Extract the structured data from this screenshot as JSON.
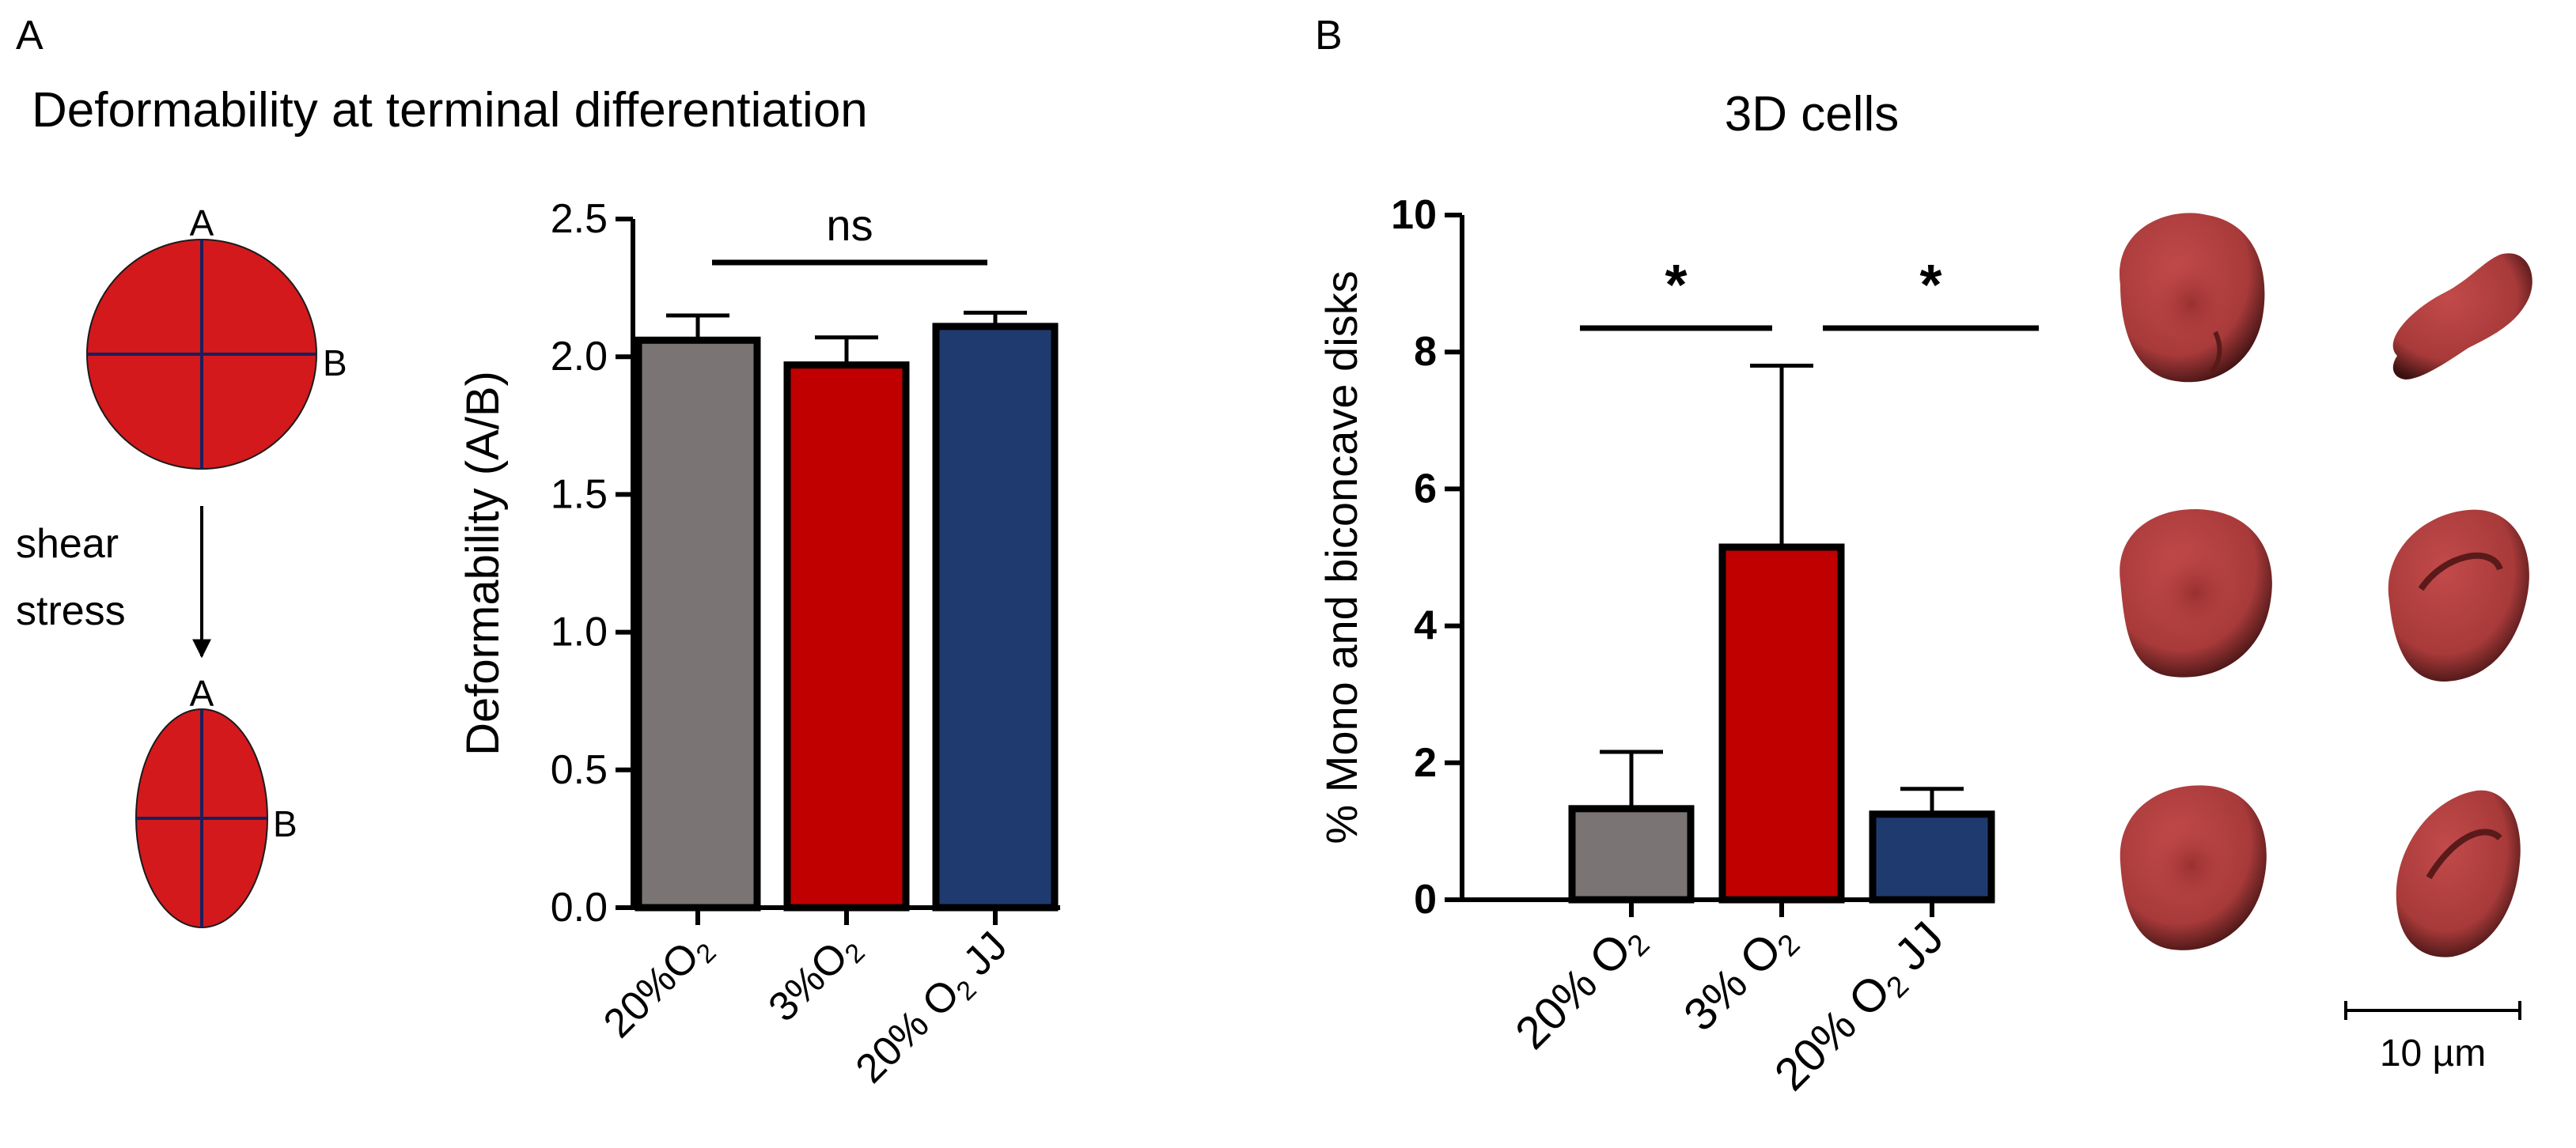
{
  "panel_a": {
    "letter": "A",
    "title": "Deformability at terminal differentiation",
    "schematic": {
      "top_label_a": "A",
      "top_label_b": "B",
      "arrow_line1": "shear",
      "arrow_line2": "stress",
      "bottom_label_a": "A",
      "bottom_label_b": "B"
    }
  },
  "panel_b": {
    "letter": "B",
    "title": "3D cells",
    "scale_bar_label": "10 µm"
  },
  "chart_data": [
    {
      "type": "bar",
      "title": "",
      "xlabel": "",
      "ylabel": "Deformability (A/B)",
      "ylim": [
        0,
        2.5
      ],
      "yticks": [
        0.0,
        0.5,
        1.0,
        1.5,
        2.0,
        2.5
      ],
      "ytick_labels": [
        "0.0",
        "0.5",
        "1.0",
        "1.5",
        "2.0",
        "2.5"
      ],
      "categories": [
        {
          "pre": "20%O",
          "sub": "2",
          "post": ""
        },
        {
          "pre": "3%O",
          "sub": "2",
          "post": ""
        },
        {
          "pre": "20% O",
          "sub": "2",
          "post": " JJ"
        }
      ],
      "values": [
        2.06,
        1.97,
        2.11
      ],
      "errors": [
        0.09,
        0.1,
        0.05
      ],
      "colors": [
        "#7a7574",
        "#c00000",
        "#1f3a6e"
      ],
      "significance": [
        {
          "from": 0,
          "to": 2,
          "label": "ns"
        }
      ]
    },
    {
      "type": "bar",
      "title": "3D cells",
      "xlabel": "",
      "ylabel": "% Mono and biconcave disks",
      "ylim": [
        0,
        10
      ],
      "yticks": [
        0,
        2,
        4,
        6,
        8,
        10
      ],
      "ytick_labels": [
        "0",
        "2",
        "4",
        "6",
        "8",
        "10"
      ],
      "categories": [
        {
          "pre": "20% O",
          "sub": "2",
          "post": ""
        },
        {
          "pre": "3% O",
          "sub": "2",
          "post": ""
        },
        {
          "pre": "20% O",
          "sub": "2",
          "post": " JJ"
        }
      ],
      "values": [
        1.33,
        5.15,
        1.25
      ],
      "errors": [
        0.83,
        2.65,
        0.37
      ],
      "colors": [
        "#7a7574",
        "#c00000",
        "#1f3a6e"
      ],
      "significance": [
        {
          "from": 0,
          "to": 1,
          "label": "*"
        },
        {
          "from": 1,
          "to": 2,
          "label": "*"
        }
      ]
    }
  ]
}
